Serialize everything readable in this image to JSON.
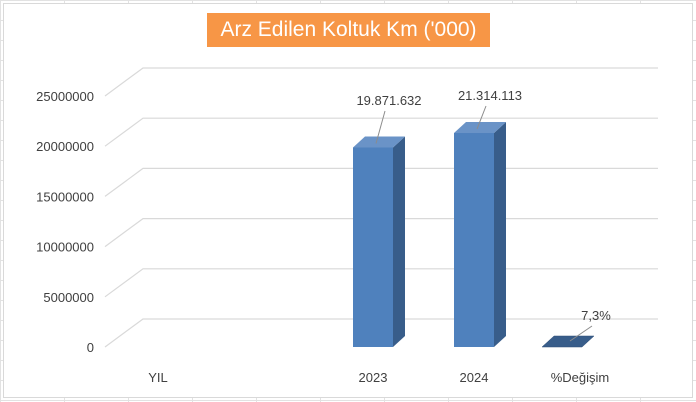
{
  "chart_data": {
    "type": "bar",
    "title": "Arz Edilen Koltuk Km ('000)",
    "categories": [
      "YIL",
      "2023",
      "2024",
      "%Değişim"
    ],
    "values": [
      0,
      19871632,
      21314113,
      7.3
    ],
    "data_labels": [
      "",
      "19.871.632",
      "21.314.113",
      "7,3%"
    ],
    "y_ticks": [
      "0",
      "5000000",
      "10000000",
      "15000000",
      "20000000",
      "25000000"
    ],
    "ylim": [
      0,
      25000000
    ],
    "grid": true,
    "three_d": true,
    "colors": {
      "bar_front": "#4f81bd",
      "bar_side": "#385d8a",
      "bar_top": "#6a93c7",
      "title_bg": "#f79646",
      "title_text": "#ffffff",
      "grid": "#d9d9d9"
    }
  }
}
